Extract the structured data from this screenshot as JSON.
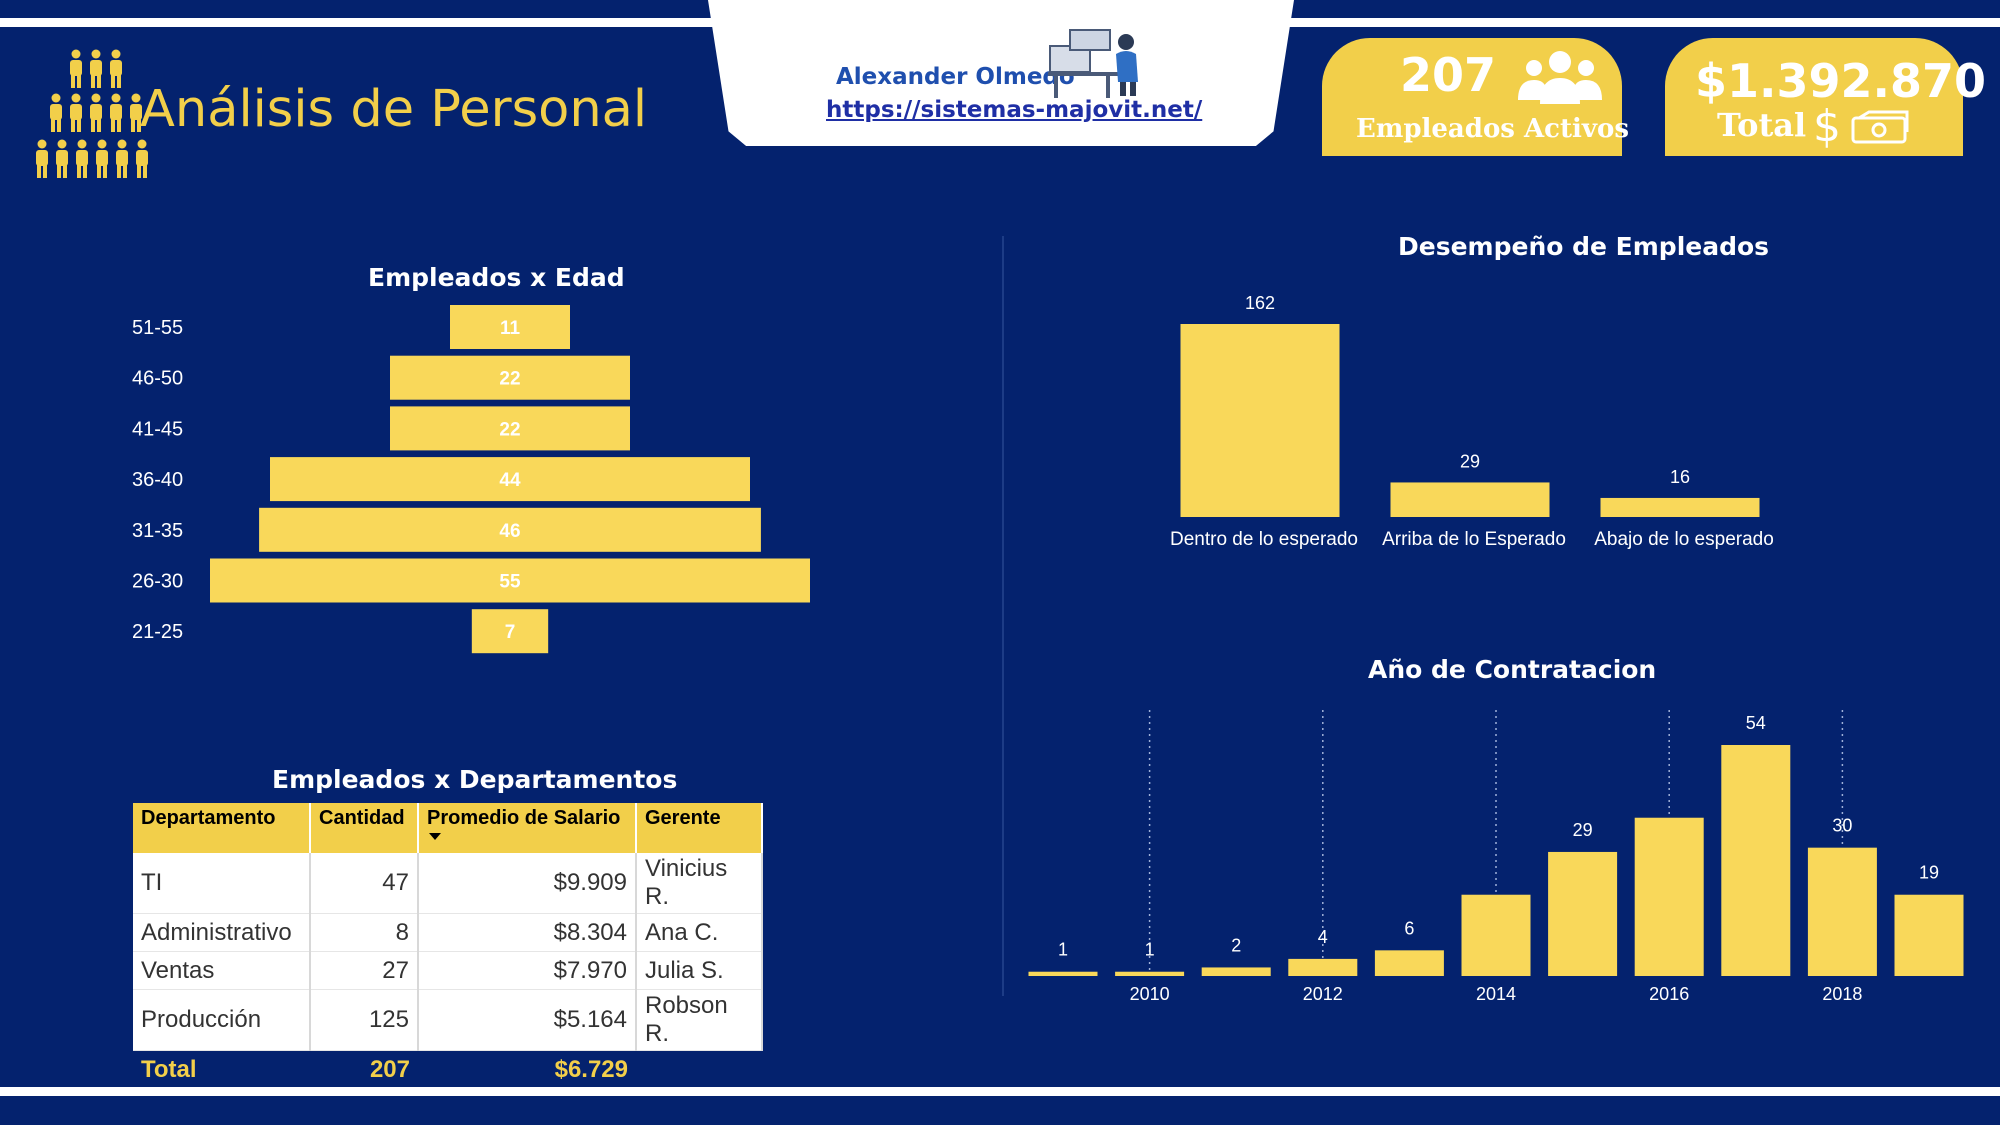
{
  "header": {
    "title": "Análisis de Personal",
    "author": "Alexander Olmedo",
    "url": "https://sistemas-majovit.net/"
  },
  "kpis": {
    "employees_value": "207",
    "employees_label": "Empleados Activos",
    "total_value": "$1.392.870",
    "total_label": "Total",
    "total_symbol": "$"
  },
  "icons": [
    "people-group-icon",
    "group-icon",
    "dollar-icon",
    "money-bill-icon",
    "desk-worker-icon"
  ],
  "colors": {
    "background": "#04226e",
    "accent": "#f2cf4a",
    "bar": "#f9d85a"
  },
  "tables": {
    "departments": {
      "title": "Empleados x Departamentos",
      "columns": [
        "Departamento",
        "Cantidad",
        "Promedio de Salario",
        "Gerente"
      ],
      "rows": [
        [
          "TI",
          "47",
          "$9.909",
          "Vinicius R."
        ],
        [
          "Administrativo",
          "8",
          "$8.304",
          "Ana C."
        ],
        [
          "Ventas",
          "27",
          "$7.970",
          "Julia S."
        ],
        [
          "Producción",
          "125",
          "$5.164",
          "Robson R."
        ]
      ],
      "total": [
        "Total",
        "207",
        "$6.729",
        ""
      ]
    }
  },
  "chart_data": [
    {
      "type": "bar",
      "orientation": "horizontal-centered",
      "title": "Empleados x Edad",
      "categories": [
        "51-55",
        "46-50",
        "41-45",
        "36-40",
        "31-35",
        "26-30",
        "21-25"
      ],
      "values": [
        11,
        22,
        22,
        44,
        46,
        55,
        7
      ]
    },
    {
      "type": "bar",
      "title": "Desempeño de Empleados",
      "categories": [
        "Dentro de lo esperado",
        "Arriba de lo Esperado",
        "Abajo de lo esperado"
      ],
      "values": [
        162,
        29,
        16
      ]
    },
    {
      "type": "bar",
      "title": "Año de Contratacion",
      "x": [
        2009,
        2010,
        2011,
        2012,
        2013,
        2014,
        2015,
        2016,
        2017,
        2018,
        2019
      ],
      "values": [
        1,
        1,
        2,
        4,
        6,
        null,
        29,
        null,
        54,
        30,
        19
      ],
      "estimated_unlabeled": {
        "2014": 19,
        "2016": 37
      },
      "tick_labels": [
        "2010",
        "2012",
        "2014",
        "2016",
        "2018"
      ],
      "grid": "vertical dotted"
    }
  ]
}
